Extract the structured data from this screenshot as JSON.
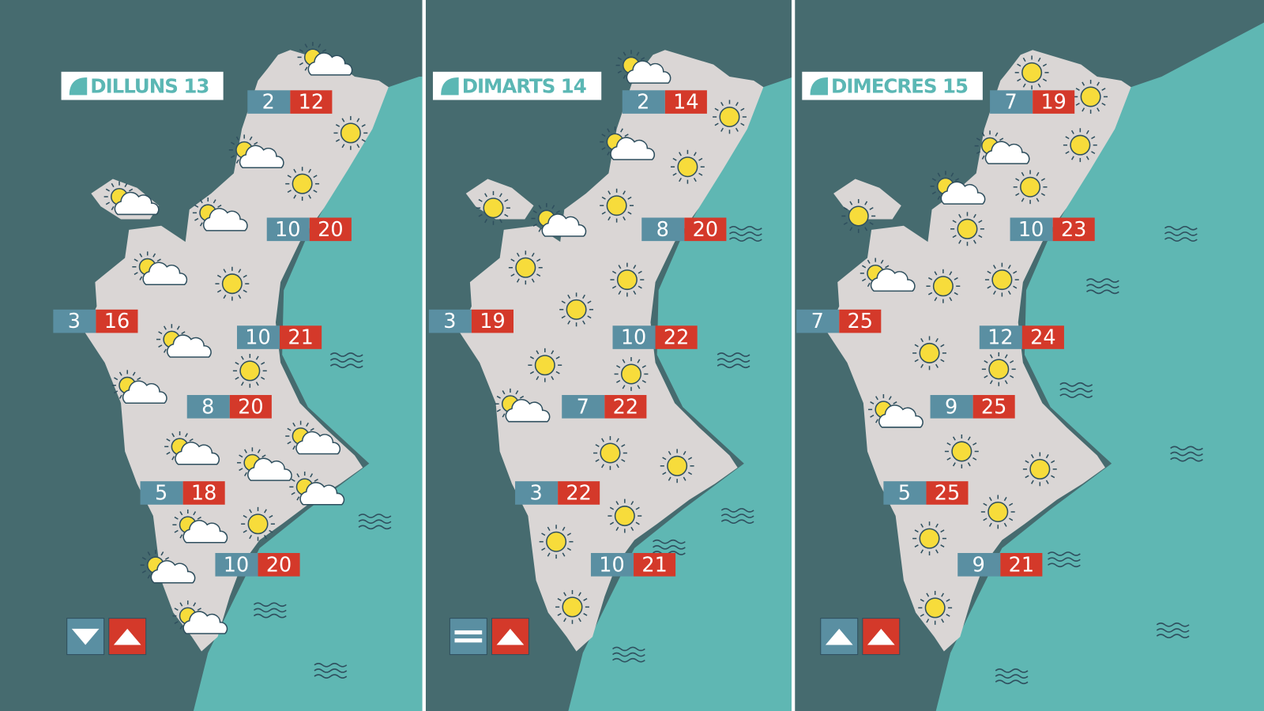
{
  "panels": [
    {
      "title": "DILLUNS 13",
      "temperatures": [
        {
          "min": 2,
          "max": 12
        },
        {
          "min": 10,
          "max": 20
        },
        {
          "min": 3,
          "max": 16
        },
        {
          "min": 10,
          "max": 21
        },
        {
          "min": 8,
          "max": 20
        },
        {
          "min": 5,
          "max": 18
        },
        {
          "min": 10,
          "max": 20
        }
      ]
    },
    {
      "title": "DIMARTS 14",
      "temperatures": [
        {
          "min": 2,
          "max": 14
        },
        {
          "min": 8,
          "max": 20
        },
        {
          "min": 3,
          "max": 19
        },
        {
          "min": 10,
          "max": 22
        },
        {
          "min": 7,
          "max": 22
        },
        {
          "min": 3,
          "max": 22
        },
        {
          "min": 10,
          "max": 21
        }
      ]
    },
    {
      "title": "DIMECRES 15",
      "temperatures": [
        {
          "min": 7,
          "max": 19
        },
        {
          "min": 10,
          "max": 23
        },
        {
          "min": 7,
          "max": 25
        },
        {
          "min": 12,
          "max": 24
        },
        {
          "min": 9,
          "max": 25
        },
        {
          "min": 5,
          "max": 25
        },
        {
          "min": 9,
          "max": 21
        }
      ]
    }
  ]
}
